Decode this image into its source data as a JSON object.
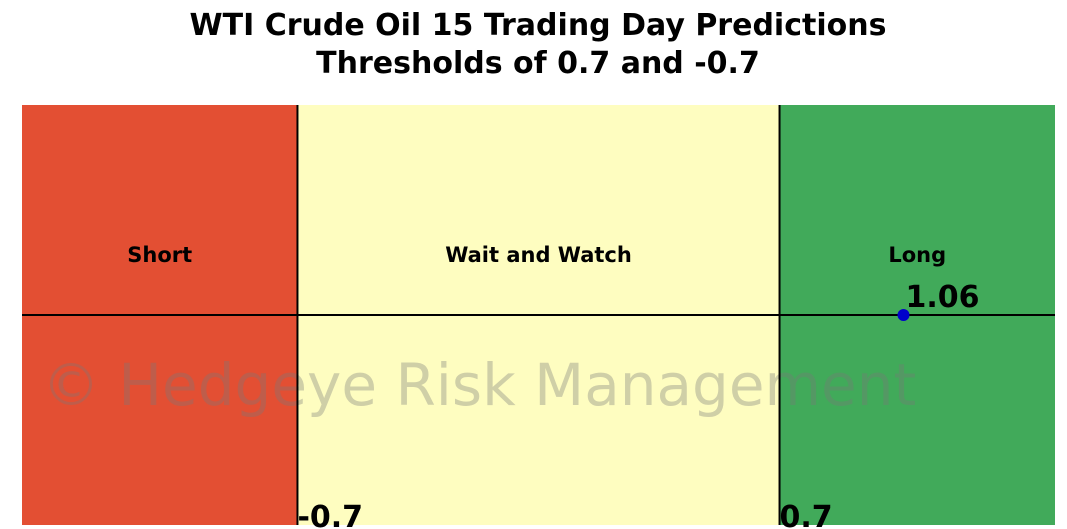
{
  "chart_data": {
    "type": "zones",
    "title": "WTI Crude Oil 15 Trading Day Predictions",
    "subtitle": "Thresholds of 0.7 and -0.7",
    "xlim": [
      -1.5,
      1.5
    ],
    "xticks": [
      -0.7,
      0.7
    ],
    "zones": [
      {
        "name": "Short",
        "color": "#e34f33"
      },
      {
        "name": "Wait and Watch",
        "color": "#fefdc0"
      },
      {
        "name": "Long",
        "color": "#41aa5a"
      }
    ],
    "point": {
      "x": 1.06,
      "label": "1.06",
      "color": "#0000cc"
    },
    "watermark": "© Hedgeye Risk Management"
  }
}
